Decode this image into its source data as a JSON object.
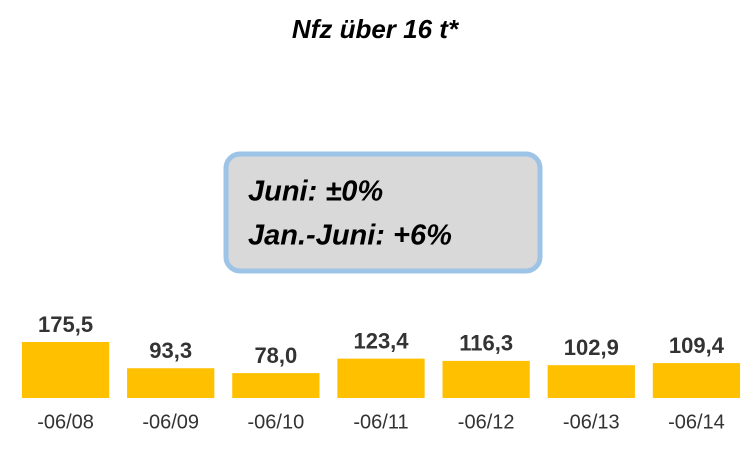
{
  "chart_data": {
    "type": "bar",
    "title": "Nfz über 16 t*",
    "annotations": [
      "Juni: ±0%",
      "Jan.-Juni: +6%"
    ],
    "categories": [
      "-06/08",
      "-06/09",
      "-06/10",
      "-06/11",
      "-06/12",
      "-06/13",
      "-06/14"
    ],
    "values": [
      175.5,
      93.3,
      78.0,
      123.4,
      116.3,
      102.9,
      109.4
    ],
    "value_labels": [
      "175,5",
      "93,3",
      "78,0",
      "123,4",
      "116,3",
      "102,9",
      "109,4"
    ],
    "color": "#ffc000"
  }
}
